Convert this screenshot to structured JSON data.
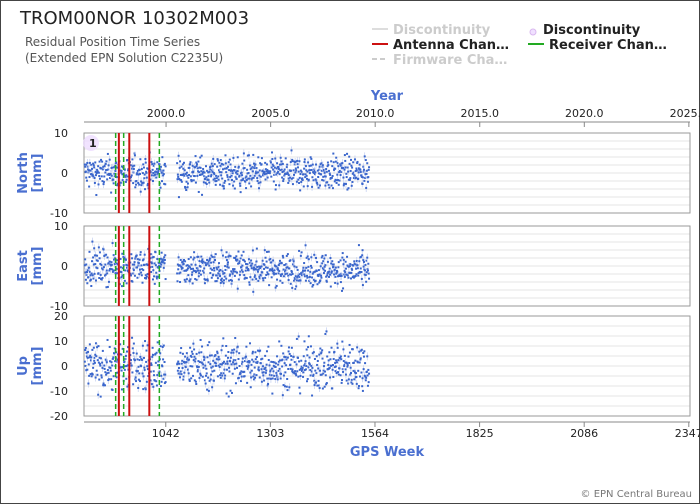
{
  "title": "TROM00NOR 10302M003",
  "subtitle_line1": "Residual Position Time Series",
  "subtitle_line2": "(Extended EPN Solution C2235U)",
  "copyright": "© EPN Central Bureau",
  "legend": {
    "discontinuity_line": "Discontinuity",
    "discontinuity_point": "Discontinuity",
    "antenna_change": "Antenna Chan…",
    "receiver_change": "Receiver Chan…",
    "firmware_change": "Firmware Cha…"
  },
  "colors": {
    "series": "#3a66cc",
    "antenna": "#cc1111",
    "receiver": "#22aa22",
    "axis_title": "#4a6fd0"
  },
  "chart_data": {
    "type": "scatter",
    "x_top": {
      "label": "Year",
      "ticks": [
        "2000.0",
        "2005.0",
        "2010.0",
        "2015.0",
        "2020.0",
        "2025.0"
      ],
      "values": [
        2000,
        2005,
        2010,
        2015,
        2020,
        2025
      ]
    },
    "x_bottom": {
      "label": "GPS Week",
      "ticks": [
        "1042",
        "1303",
        "1564",
        "1825",
        "2086",
        "2347"
      ],
      "values": [
        1042,
        1303,
        1564,
        1825,
        2086,
        2347
      ]
    },
    "xlim_gps_week": [
      838,
      2350
    ],
    "panels": [
      {
        "name": "North",
        "ylabel": "North\n[mm]",
        "ylim": [
          -10,
          10
        ],
        "ticks": [
          10,
          0,
          -10
        ],
        "noise": 3,
        "trend": 0
      },
      {
        "name": "East",
        "ylabel": "East\n[mm]",
        "ylim": [
          -10,
          10
        ],
        "ticks": [
          10,
          0,
          -10
        ],
        "noise": 3,
        "trend": -0.5
      },
      {
        "name": "Up",
        "ylabel": "Up\n[mm]",
        "ylim": [
          -20,
          20
        ],
        "ticks": [
          20,
          10,
          0,
          -10,
          -20
        ],
        "noise": 7,
        "trend": 0
      }
    ],
    "data_range_gps_week": [
      840,
      1550
    ],
    "data_gap_gps_week": [
      1042,
      1070
    ],
    "antenna_changes_gps_week": [
      925,
      951,
      1001
    ],
    "receiver_changes_gps_week": [
      917,
      937,
      1026
    ],
    "discontinuity_label": "1",
    "grid": true
  }
}
